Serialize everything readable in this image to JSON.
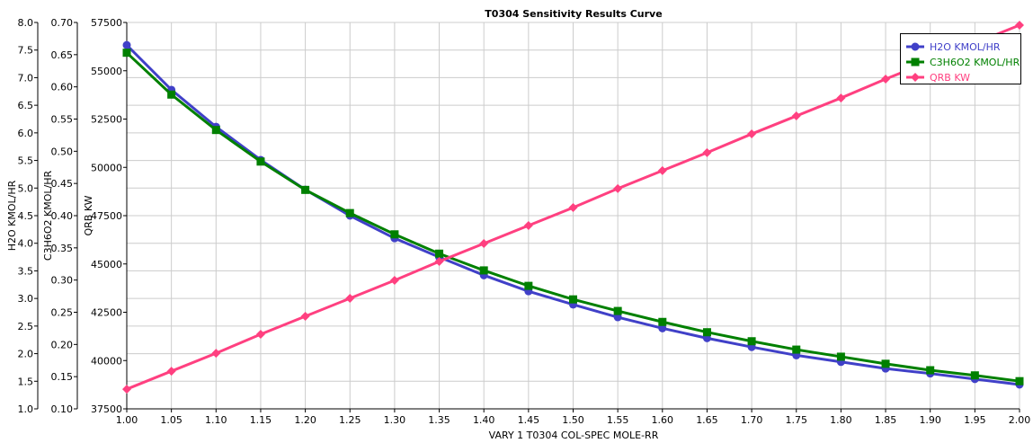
{
  "chart_data": {
    "type": "line",
    "title": "T0304 Sensitivity Results Curve",
    "xlabel": "VARY  1 T0304 COL-SPEC MOLE-RR",
    "xlim": [
      1.0,
      2.0
    ],
    "x": [
      1.0,
      1.05,
      1.1,
      1.15,
      1.2,
      1.25,
      1.3,
      1.35,
      1.4,
      1.45,
      1.5,
      1.55,
      1.6,
      1.65,
      1.7,
      1.75,
      1.8,
      1.85,
      1.9,
      1.95,
      2.0
    ],
    "x_ticks": [
      "1.00",
      "1.05",
      "1.10",
      "1.15",
      "1.20",
      "1.25",
      "1.30",
      "1.35",
      "1.40",
      "1.45",
      "1.50",
      "1.55",
      "1.60",
      "1.65",
      "1.70",
      "1.75",
      "1.80",
      "1.85",
      "1.90",
      "1.95",
      "2.00"
    ],
    "grid": true,
    "legend_position": "top-right",
    "axes": [
      {
        "id": "h2o",
        "label": "H2O KMOL/HR",
        "ylim": [
          1.0,
          8.0
        ],
        "ticks": [
          "1.0",
          "1.5",
          "2.0",
          "2.5",
          "3.0",
          "3.5",
          "4.0",
          "4.5",
          "5.0",
          "5.5",
          "6.0",
          "6.5",
          "7.0",
          "7.5",
          "8.0"
        ]
      },
      {
        "id": "c3",
        "label": "C3H6O2 KMOL/HR",
        "ylim": [
          0.1,
          0.7
        ],
        "ticks": [
          "0.10",
          "0.15",
          "0.20",
          "0.25",
          "0.30",
          "0.35",
          "0.40",
          "0.45",
          "0.50",
          "0.55",
          "0.60",
          "0.65",
          "0.70"
        ]
      },
      {
        "id": "qrb",
        "label": "QRB KW",
        "ylim": [
          37500,
          57500
        ],
        "ticks": [
          "37500",
          "40000",
          "42500",
          "45000",
          "47500",
          "50000",
          "52500",
          "55000",
          "57500"
        ]
      }
    ],
    "series": [
      {
        "name": "H2O KMOL/HR",
        "axis": "h2o",
        "color": "#4040c8",
        "marker": "circle",
        "values": [
          7.59,
          6.78,
          6.11,
          5.51,
          4.97,
          4.5,
          4.09,
          3.75,
          3.42,
          3.13,
          2.89,
          2.66,
          2.46,
          2.28,
          2.12,
          1.97,
          1.85,
          1.73,
          1.64,
          1.54,
          1.44
        ]
      },
      {
        "name": "C3H6O2 KMOL/HR",
        "axis": "c3",
        "color": "#008000",
        "marker": "square",
        "values": [
          0.653,
          0.588,
          0.533,
          0.484,
          0.44,
          0.404,
          0.371,
          0.341,
          0.315,
          0.291,
          0.27,
          0.252,
          0.235,
          0.219,
          0.205,
          0.192,
          0.181,
          0.17,
          0.16,
          0.152,
          0.143
        ]
      },
      {
        "name": "QRB KW",
        "axis": "qrb",
        "color": "#ff4080",
        "marker": "diamond",
        "values": [
          38520,
          39450,
          40380,
          41360,
          42290,
          43220,
          44150,
          45130,
          46060,
          46990,
          47920,
          48900,
          49830,
          50760,
          51730,
          52660,
          53590,
          54570,
          55500,
          56430,
          57360
        ]
      }
    ]
  }
}
